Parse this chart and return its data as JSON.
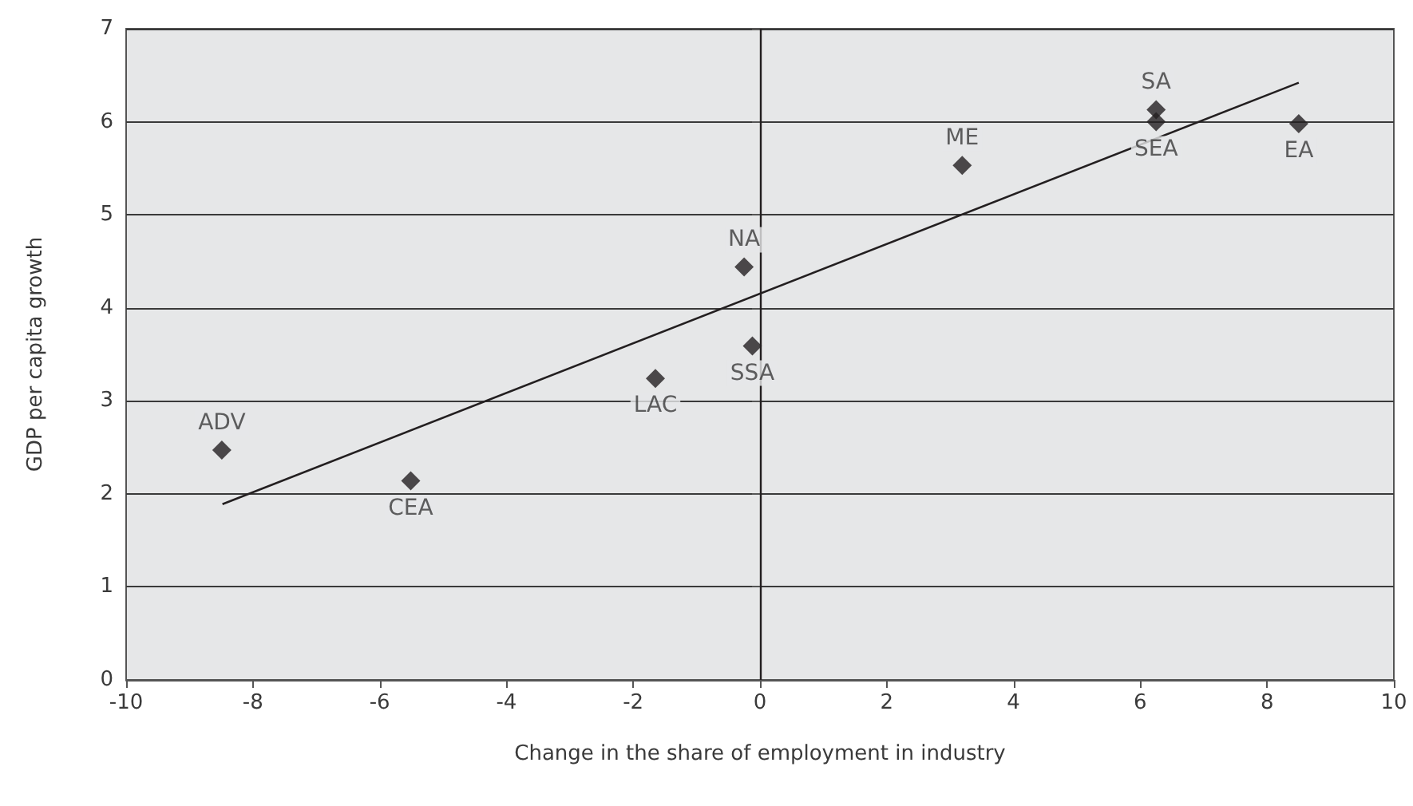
{
  "chart_data": {
    "type": "scatter",
    "xlabel": "Change in the share of employment in industry",
    "ylabel": "GDP per capita growth",
    "series": [
      {
        "color": "#231f20",
        "marker": "diamond",
        "x": [
          -8.49,
          -5.51,
          -1.65,
          -0.25,
          -0.12,
          3.19,
          6.25,
          6.25,
          8.5
        ],
        "values": [
          2.47,
          2.14,
          3.24,
          4.44,
          3.59,
          5.53,
          6.13,
          6.0,
          5.98
        ]
      },
      {
        "type": "line",
        "color": "#231f20",
        "x": [
          -8.48,
          8.5
        ],
        "values": [
          1.89,
          6.42
        ]
      }
    ],
    "annotations": [
      {
        "text": "ADV",
        "x": -8.49,
        "y": 2.47
      },
      {
        "text": "CEA",
        "x": -5.51,
        "y": 2.14
      },
      {
        "text": "LAC",
        "x": -1.65,
        "y": 3.24
      },
      {
        "text": "NA",
        "x": -0.25,
        "y": 4.44
      },
      {
        "text": "SSA",
        "x": -0.12,
        "y": 3.59
      },
      {
        "text": "ME",
        "x": 3.19,
        "y": 5.53
      },
      {
        "text": "SA",
        "x": 6.25,
        "y": 6.13
      },
      {
        "text": "SEA",
        "x": 6.25,
        "y": 6.0
      },
      {
        "text": "EA",
        "x": 8.5,
        "y": 5.98
      }
    ],
    "xlim": [
      -10,
      10
    ],
    "xticks": [
      -10,
      -8,
      -6,
      -4,
      -2,
      0,
      2,
      4,
      6,
      8,
      10
    ],
    "ylim": [
      0,
      7
    ],
    "yticks": [
      0,
      1,
      2,
      3,
      4,
      5,
      6,
      7
    ],
    "ref_lines": [
      {
        "axis": "x",
        "value": 0,
        "color": "#231f20"
      }
    ],
    "grid": "y"
  }
}
